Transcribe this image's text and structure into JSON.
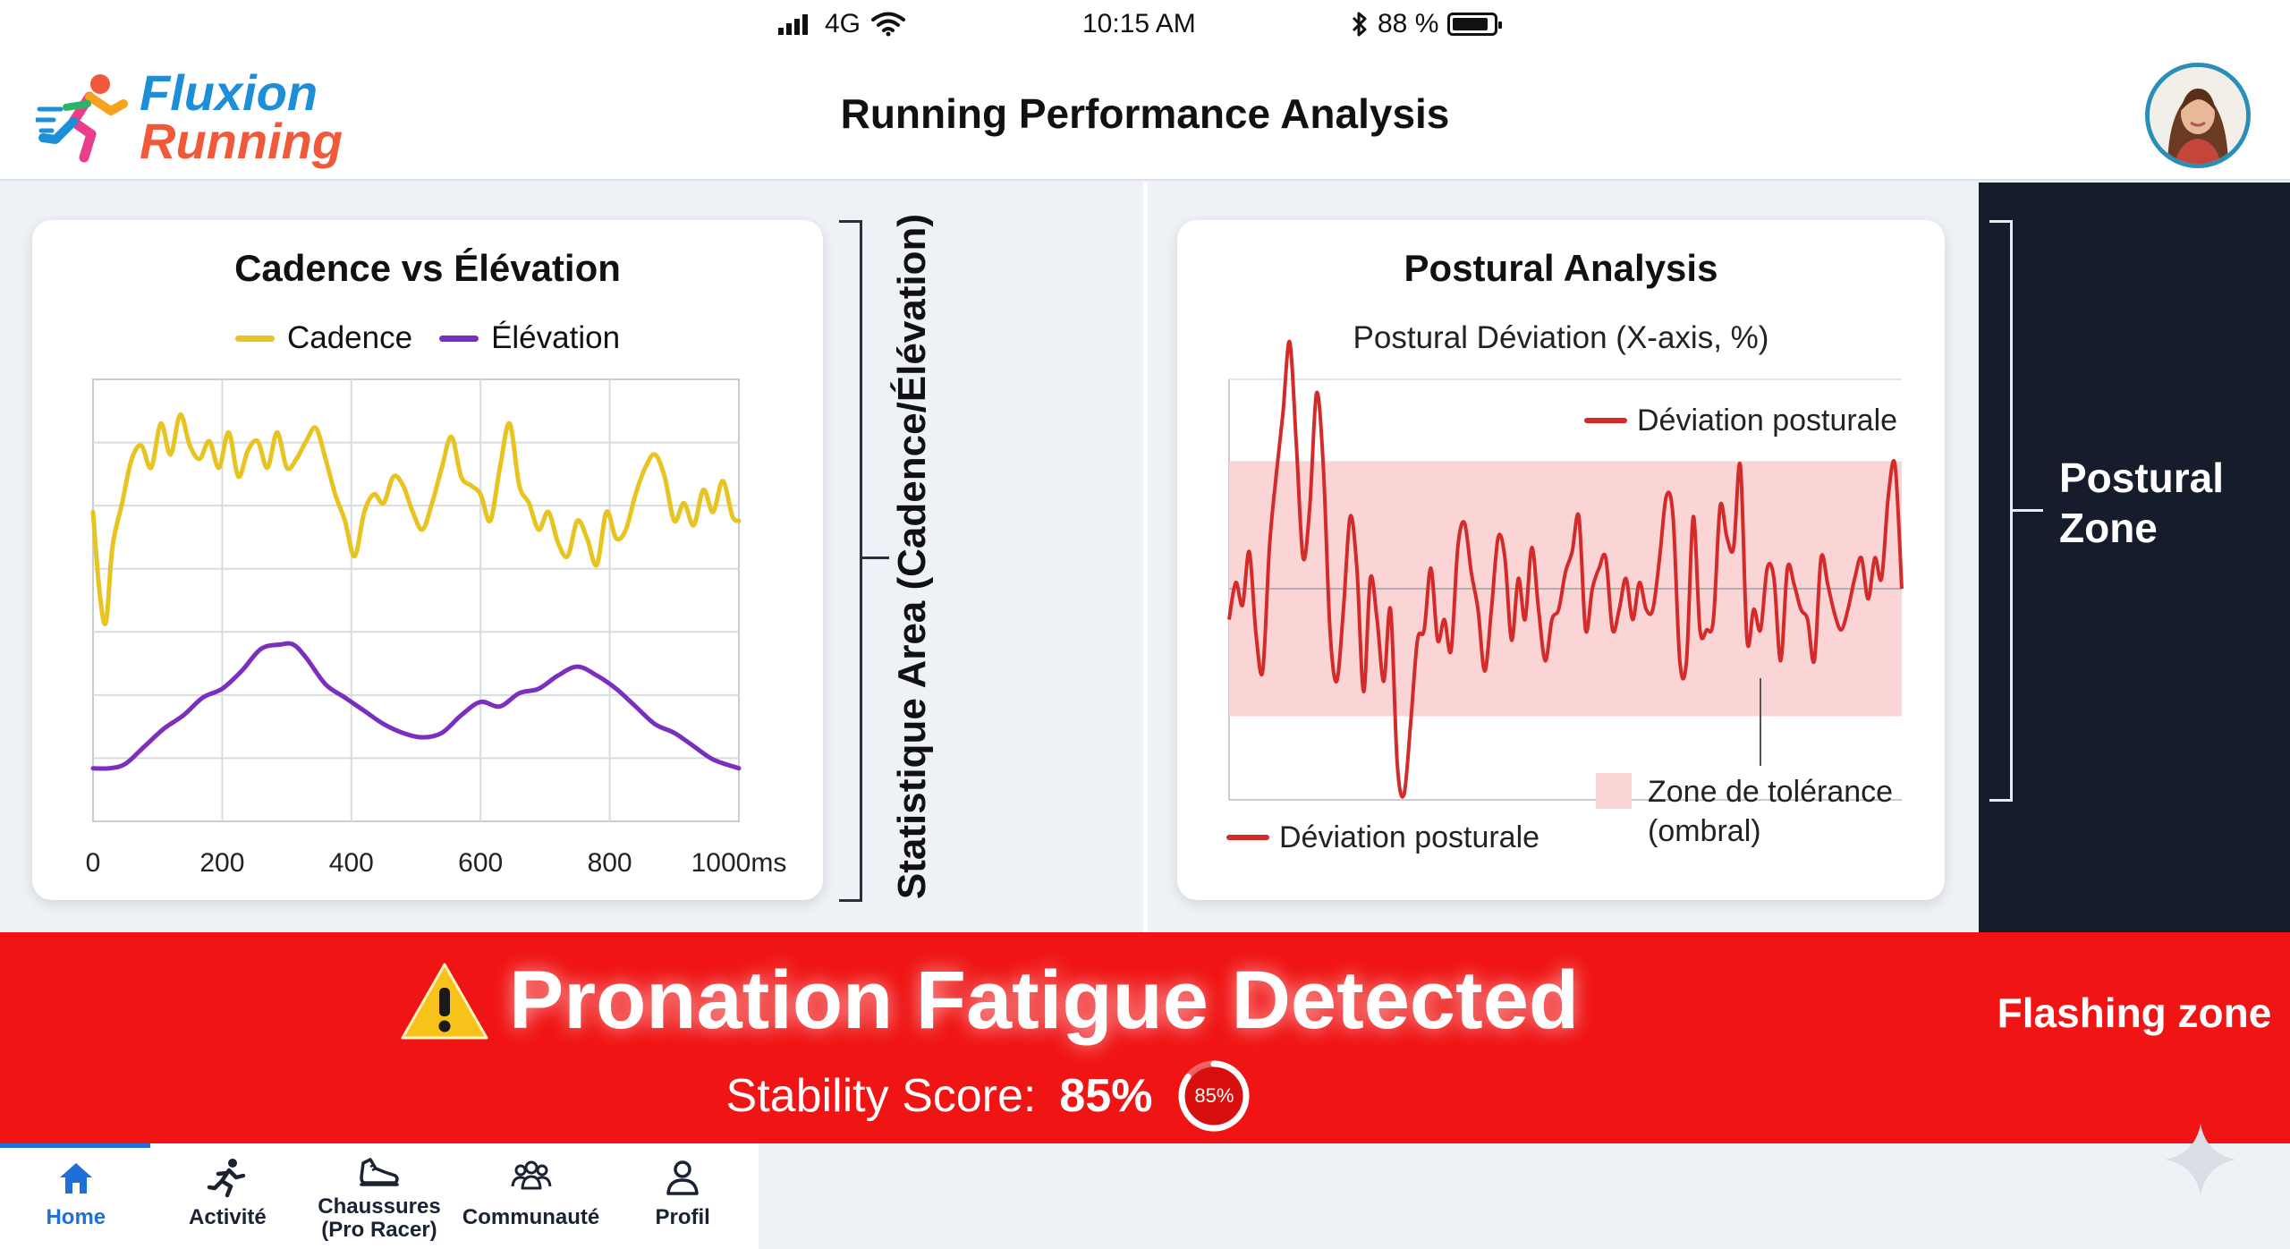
{
  "status_bar": {
    "signal": "4G",
    "time": "10:15 AM",
    "battery": "88 %",
    "battery_level": 0.88
  },
  "header": {
    "logo_line1": "Fluxion",
    "logo_line2": "Running",
    "title": "Running Performance Analysis"
  },
  "side_labels": {
    "statistique_area": "Statistique Area (Cadence/Élévation)",
    "postural_zone": "Postural Zone",
    "flashing_zone": "Flashing zone"
  },
  "chart_data": [
    {
      "type": "line",
      "title": "Cadence vs Élévation",
      "x_ticks": [
        "0",
        "200",
        "400",
        "600",
        "800",
        "1000ms"
      ],
      "xlim": [
        0,
        1000
      ],
      "ylim": [
        0,
        100
      ],
      "grid": true,
      "legend": "top",
      "series": [
        {
          "name": "Cadence",
          "color": "#e8c422",
          "x": [
            0,
            10,
            20,
            30,
            45,
            60,
            75,
            90,
            105,
            120,
            135,
            150,
            165,
            180,
            195,
            210,
            225,
            240,
            255,
            270,
            285,
            300,
            315,
            330,
            345,
            360,
            375,
            390,
            405,
            420,
            435,
            450,
            465,
            480,
            495,
            510,
            525,
            540,
            555,
            570,
            585,
            600,
            615,
            630,
            645,
            660,
            675,
            690,
            705,
            720,
            735,
            750,
            765,
            780,
            795,
            810,
            825,
            840,
            855,
            870,
            885,
            900,
            915,
            930,
            945,
            960,
            975,
            990,
            1000
          ],
          "values": [
            70,
            52,
            45,
            62,
            72,
            82,
            85,
            80,
            90,
            83,
            92,
            85,
            82,
            86,
            80,
            88,
            78,
            84,
            86,
            80,
            88,
            80,
            82,
            86,
            89,
            82,
            74,
            68,
            60,
            70,
            74,
            72,
            78,
            76,
            70,
            66,
            72,
            80,
            87,
            78,
            76,
            74,
            68,
            80,
            90,
            76,
            72,
            66,
            70,
            63,
            60,
            68,
            64,
            58,
            70,
            64,
            66,
            74,
            80,
            83,
            78,
            68,
            72,
            67,
            75,
            70,
            77,
            69,
            68
          ]
        },
        {
          "name": "Élévation",
          "color": "#7b2fbf",
          "x": [
            0,
            25,
            50,
            80,
            110,
            140,
            170,
            200,
            230,
            260,
            290,
            310,
            330,
            360,
            390,
            420,
            450,
            480,
            510,
            540,
            570,
            600,
            630,
            660,
            690,
            720,
            750,
            780,
            810,
            840,
            870,
            900,
            930,
            960,
            1000
          ],
          "values": [
            12,
            12,
            13,
            17,
            21,
            24,
            28,
            30,
            34,
            39,
            40,
            40,
            37,
            31,
            28,
            25,
            22,
            20,
            19,
            20,
            24,
            27,
            26,
            29,
            30,
            33,
            35,
            33,
            30,
            26,
            22,
            20,
            17,
            14,
            12
          ]
        }
      ]
    },
    {
      "type": "line",
      "title": "Postural Analysis",
      "subtitle": "Postural Déviation (X-axis, %)",
      "grid": false,
      "legend": "top-right",
      "tolerance_band": [
        -5,
        5
      ],
      "series": [
        {
          "name": "Déviation posturale",
          "color": "#d42a2a",
          "x": [
            0,
            8,
            16,
            24,
            32,
            40,
            48,
            56,
            64,
            72,
            80,
            88,
            96,
            104,
            112,
            120,
            128,
            136,
            144,
            152,
            160,
            168,
            176,
            184,
            192,
            200,
            208,
            216,
            224,
            232,
            240,
            248,
            256,
            264,
            272,
            280,
            288,
            296,
            304,
            312,
            320,
            328,
            336,
            344,
            352,
            360,
            368,
            376,
            384,
            392,
            400,
            408,
            416,
            424,
            432,
            440,
            448,
            456,
            464,
            472,
            480,
            488,
            496,
            504,
            512,
            520,
            528,
            536,
            544,
            552,
            560,
            568,
            576,
            584,
            592,
            600,
            608,
            616,
            624,
            632,
            640,
            648,
            656,
            664,
            672,
            680,
            688,
            696,
            704,
            712,
            720,
            728,
            736,
            744,
            752,
            760,
            768,
            776,
            784,
            792,
            800
          ],
          "values": [
            -1.5,
            0.3,
            -0.8,
            1.8,
            -2.2,
            -4,
            2,
            5.5,
            8.5,
            12,
            7,
            1.5,
            4,
            9.5,
            6,
            -2,
            -4.5,
            -1,
            3.5,
            1,
            -5,
            0.5,
            -1.5,
            -4.5,
            -1,
            -8.5,
            -10,
            -6.5,
            -2.5,
            -2,
            1,
            -2.5,
            -1.5,
            -3,
            2,
            3.2,
            0.8,
            -1,
            -4,
            -1,
            2.5,
            1.5,
            -2.5,
            0.5,
            -1.5,
            2,
            -1,
            -3.5,
            -1.5,
            -1,
            0.8,
            1.8,
            3.5,
            -2,
            0,
            1,
            1.5,
            -2,
            -1,
            0.5,
            -1.5,
            0.3,
            -1,
            -1,
            1.5,
            4.5,
            3.5,
            -3.5,
            -3.5,
            3.5,
            -2,
            -2,
            -1.5,
            4,
            2.5,
            2,
            6,
            -2.5,
            -1,
            -2,
            1,
            0.5,
            -3.5,
            1,
            0.2,
            -1,
            -1.5,
            -3.5,
            1.5,
            0.2,
            -1.2,
            -2,
            -1,
            0.5,
            1.5,
            -0.5,
            1.5,
            0.5,
            4.5,
            6,
            0
          ]
        }
      ],
      "legend_entries": [
        "Déviation posturale",
        "Déviation posturale",
        "Zone de tolérance (ombral)"
      ]
    }
  ],
  "alert": {
    "title": "Pronation Fatigue Detected",
    "score_label": "Stability Score:",
    "score_value": "85%",
    "ring_text": "85%",
    "ring_fraction": 0.85,
    "color": "#f01414"
  },
  "nav": {
    "items": [
      {
        "label": "Home",
        "icon": "home-icon"
      },
      {
        "label": "Activité",
        "icon": "runner-icon"
      },
      {
        "label": "Chaussures (Pro Racer)",
        "icon": "shoe-icon"
      },
      {
        "label": "Communauté",
        "icon": "community-icon"
      },
      {
        "label": "Profil",
        "icon": "profile-icon"
      }
    ]
  },
  "colors": {
    "accent": "#1e6fd9",
    "dark_zone": "#151c2b",
    "alert": "#f01414",
    "cadence": "#e8c422",
    "elevation": "#7b2fbf",
    "deviation": "#d42a2a",
    "tolerance": "#fbd5d5"
  }
}
